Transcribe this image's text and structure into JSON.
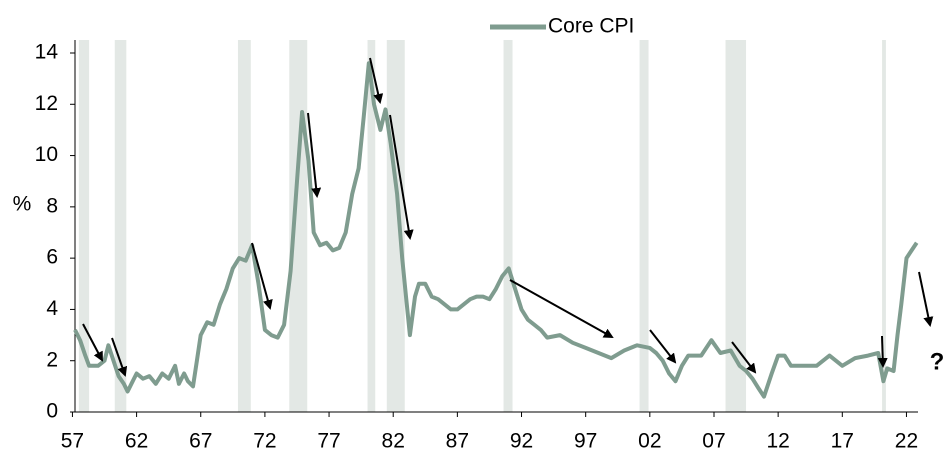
{
  "chart_data": {
    "type": "line",
    "legend": "top",
    "series": [
      {
        "name": "Core CPI",
        "color": "#7f9c8f",
        "x": [
          1957.2,
          1957.6,
          1958.0,
          1958.3,
          1959.0,
          1959.5,
          1959.8,
          1960.2,
          1960.6,
          1961.0,
          1961.3,
          1961.7,
          1962.0,
          1962.5,
          1963.0,
          1963.5,
          1964.0,
          1964.5,
          1965.0,
          1965.3,
          1965.7,
          1966.0,
          1966.4,
          1966.7,
          1967.0,
          1967.5,
          1968.0,
          1968.5,
          1969.0,
          1969.5,
          1970.0,
          1970.5,
          1971.0,
          1971.5,
          1972.0,
          1972.5,
          1973.0,
          1973.5,
          1974.0,
          1974.5,
          1974.9,
          1975.4,
          1975.8,
          1976.3,
          1976.8,
          1977.3,
          1977.8,
          1978.3,
          1978.8,
          1979.3,
          1979.7,
          1980.1,
          1980.5,
          1981.0,
          1981.4,
          1981.8,
          1982.3,
          1982.7,
          1983.0,
          1983.3,
          1983.7,
          1984.0,
          1984.5,
          1985.0,
          1985.5,
          1986.0,
          1986.5,
          1987.0,
          1987.5,
          1988.0,
          1988.5,
          1989.0,
          1989.5,
          1990.0,
          1990.5,
          1991.0,
          1991.5,
          1992.0,
          1992.5,
          1993.0,
          1993.5,
          1994.0,
          1995.0,
          1996.0,
          1997.0,
          1998.0,
          1999.0,
          2000.0,
          2001.0,
          2002.0,
          2002.5,
          2003.0,
          2003.5,
          2004.0,
          2004.5,
          2005.0,
          2006.0,
          2006.8,
          2007.5,
          2008.3,
          2009.0,
          2009.5,
          2010.0,
          2010.5,
          2010.9,
          2011.5,
          2012.0,
          2012.5,
          2013.0,
          2014.0,
          2015.0,
          2016.0,
          2017.0,
          2018.0,
          2019.0,
          2019.8,
          2020.2,
          2020.5,
          2021.0,
          2021.3,
          2021.6,
          2022.0,
          2022.4,
          2022.8
        ],
        "values": [
          3.2,
          2.8,
          2.2,
          1.8,
          1.8,
          2.0,
          2.6,
          2.0,
          1.4,
          1.1,
          0.8,
          1.2,
          1.5,
          1.3,
          1.4,
          1.1,
          1.5,
          1.3,
          1.8,
          1.1,
          1.5,
          1.2,
          1.0,
          2.0,
          3.0,
          3.5,
          3.4,
          4.2,
          4.8,
          5.6,
          6.0,
          5.9,
          6.5,
          5.0,
          3.2,
          3.0,
          2.9,
          3.4,
          5.5,
          9.0,
          11.7,
          9.8,
          7.0,
          6.5,
          6.6,
          6.3,
          6.4,
          7.0,
          8.5,
          9.5,
          11.5,
          13.6,
          12.0,
          11.0,
          11.8,
          10.5,
          8.5,
          6.0,
          4.5,
          3.0,
          4.5,
          5.0,
          5.0,
          4.5,
          4.4,
          4.2,
          4.0,
          4.0,
          4.2,
          4.4,
          4.5,
          4.5,
          4.4,
          4.8,
          5.3,
          5.6,
          4.8,
          4.0,
          3.6,
          3.4,
          3.2,
          2.9,
          3.0,
          2.7,
          2.5,
          2.3,
          2.1,
          2.4,
          2.6,
          2.5,
          2.3,
          2.0,
          1.5,
          1.2,
          1.8,
          2.2,
          2.2,
          2.8,
          2.3,
          2.4,
          1.8,
          1.6,
          1.3,
          0.9,
          0.6,
          1.5,
          2.2,
          2.2,
          1.8,
          1.8,
          1.8,
          2.2,
          1.8,
          2.1,
          2.2,
          2.3,
          1.2,
          1.7,
          1.6,
          3.0,
          4.2,
          6.0,
          6.3,
          6.6
        ]
      }
    ],
    "recessions": [
      [
        1957.5,
        1958.3
      ],
      [
        1960.3,
        1961.2
      ],
      [
        1969.9,
        1970.9
      ],
      [
        1973.9,
        1975.3
      ],
      [
        1980.0,
        1980.6
      ],
      [
        1981.5,
        1982.9
      ],
      [
        1990.6,
        1991.3
      ],
      [
        2001.2,
        2001.9
      ],
      [
        2007.9,
        2009.5
      ],
      [
        2020.1,
        2020.4
      ]
    ],
    "recession_color": "#e3e8e5",
    "ylabel": "%",
    "annotation": "?",
    "xlim": [
      1957.2,
      2022.9
    ],
    "ylim": [
      0,
      14
    ],
    "yticks": [
      0,
      2,
      4,
      6,
      8,
      10,
      12,
      14
    ],
    "xticks": [
      {
        "value": 1957,
        "label": "57"
      },
      {
        "value": 1962,
        "label": "62"
      },
      {
        "value": 1967,
        "label": "67"
      },
      {
        "value": 1972,
        "label": "72"
      },
      {
        "value": 1977,
        "label": "77"
      },
      {
        "value": 1982,
        "label": "82"
      },
      {
        "value": 1987,
        "label": "87"
      },
      {
        "value": 1992,
        "label": "92"
      },
      {
        "value": 1997,
        "label": "97"
      },
      {
        "value": 2002,
        "label": "02"
      },
      {
        "value": 2007,
        "label": "07"
      },
      {
        "value": 2012,
        "label": "12"
      },
      {
        "value": 2017,
        "label": "17"
      },
      {
        "value": 2022,
        "label": "22"
      }
    ]
  }
}
